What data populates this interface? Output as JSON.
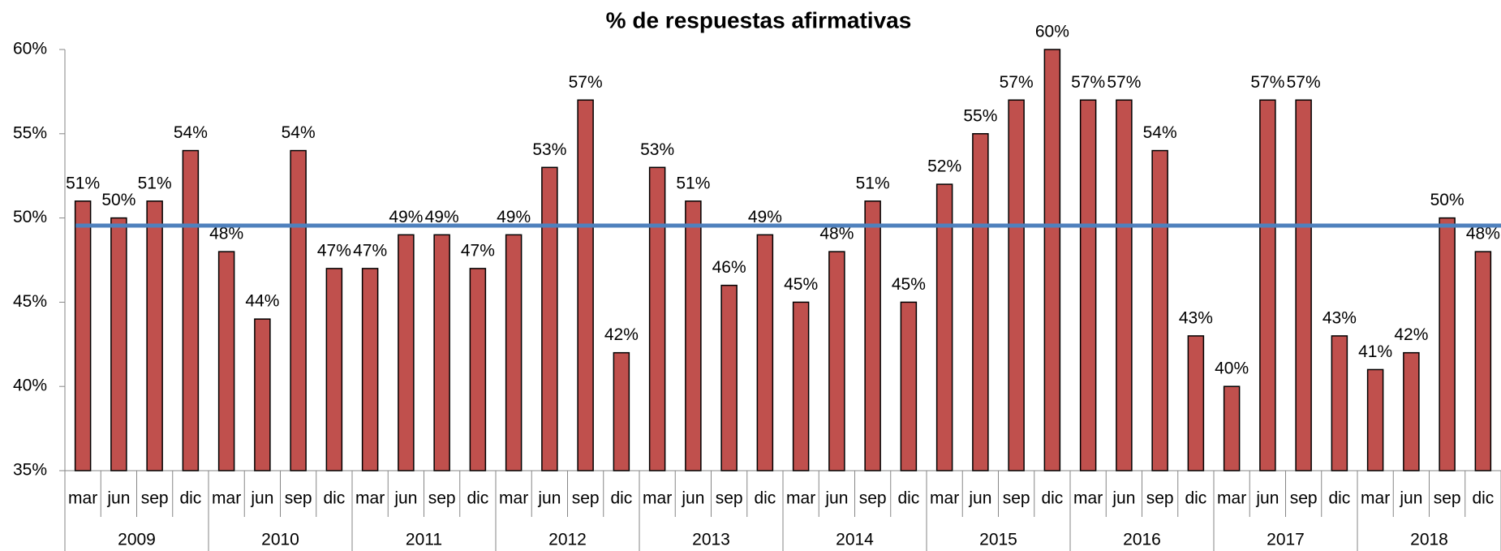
{
  "chart_data": {
    "type": "bar",
    "title": "% de respuestas afirmativas",
    "categories": [
      "mar",
      "jun",
      "sep",
      "dic",
      "mar",
      "jun",
      "sep",
      "dic",
      "mar",
      "jun",
      "sep",
      "dic",
      "mar",
      "jun",
      "sep",
      "dic",
      "mar",
      "jun",
      "sep",
      "dic",
      "mar",
      "jun",
      "sep",
      "dic",
      "mar",
      "jun",
      "sep",
      "dic",
      "mar",
      "jun",
      "sep",
      "dic",
      "mar",
      "jun",
      "sep",
      "dic",
      "mar",
      "jun",
      "sep",
      "dic"
    ],
    "years": [
      "2009",
      "2010",
      "2011",
      "2012",
      "2013",
      "2014",
      "2015",
      "2016",
      "2017",
      "2018"
    ],
    "values": [
      51,
      50,
      51,
      54,
      48,
      44,
      54,
      47,
      47,
      49,
      49,
      47,
      49,
      53,
      57,
      42,
      53,
      51,
      46,
      49,
      45,
      48,
      51,
      45,
      52,
      55,
      57,
      60,
      57,
      57,
      54,
      43,
      40,
      57,
      57,
      43,
      41,
      42,
      50,
      48
    ],
    "value_labels": [
      "51%",
      "50%",
      "51%",
      "54%",
      "48%",
      "44%",
      "54%",
      "47%",
      "47%",
      "49%",
      "49%",
      "47%",
      "49%",
      "53%",
      "57%",
      "42%",
      "53%",
      "51%",
      "46%",
      "49%",
      "45%",
      "48%",
      "51%",
      "45%",
      "52%",
      "55%",
      "57%",
      "60%",
      "57%",
      "57%",
      "54%",
      "43%",
      "40%",
      "57%",
      "57%",
      "43%",
      "41%",
      "42%",
      "50%",
      "48%"
    ],
    "color": "#c0504d",
    "average": 49.55,
    "average_color": "#4f81bd",
    "ylim": [
      35,
      60
    ],
    "yticks": [
      {
        "value": 35,
        "label": "35%"
      },
      {
        "value": 40,
        "label": "40%"
      },
      {
        "value": 45,
        "label": "45%"
      },
      {
        "value": 50,
        "label": "50%"
      },
      {
        "value": 55,
        "label": "55%"
      },
      {
        "value": 60,
        "label": "60%"
      }
    ],
    "grid": false
  }
}
